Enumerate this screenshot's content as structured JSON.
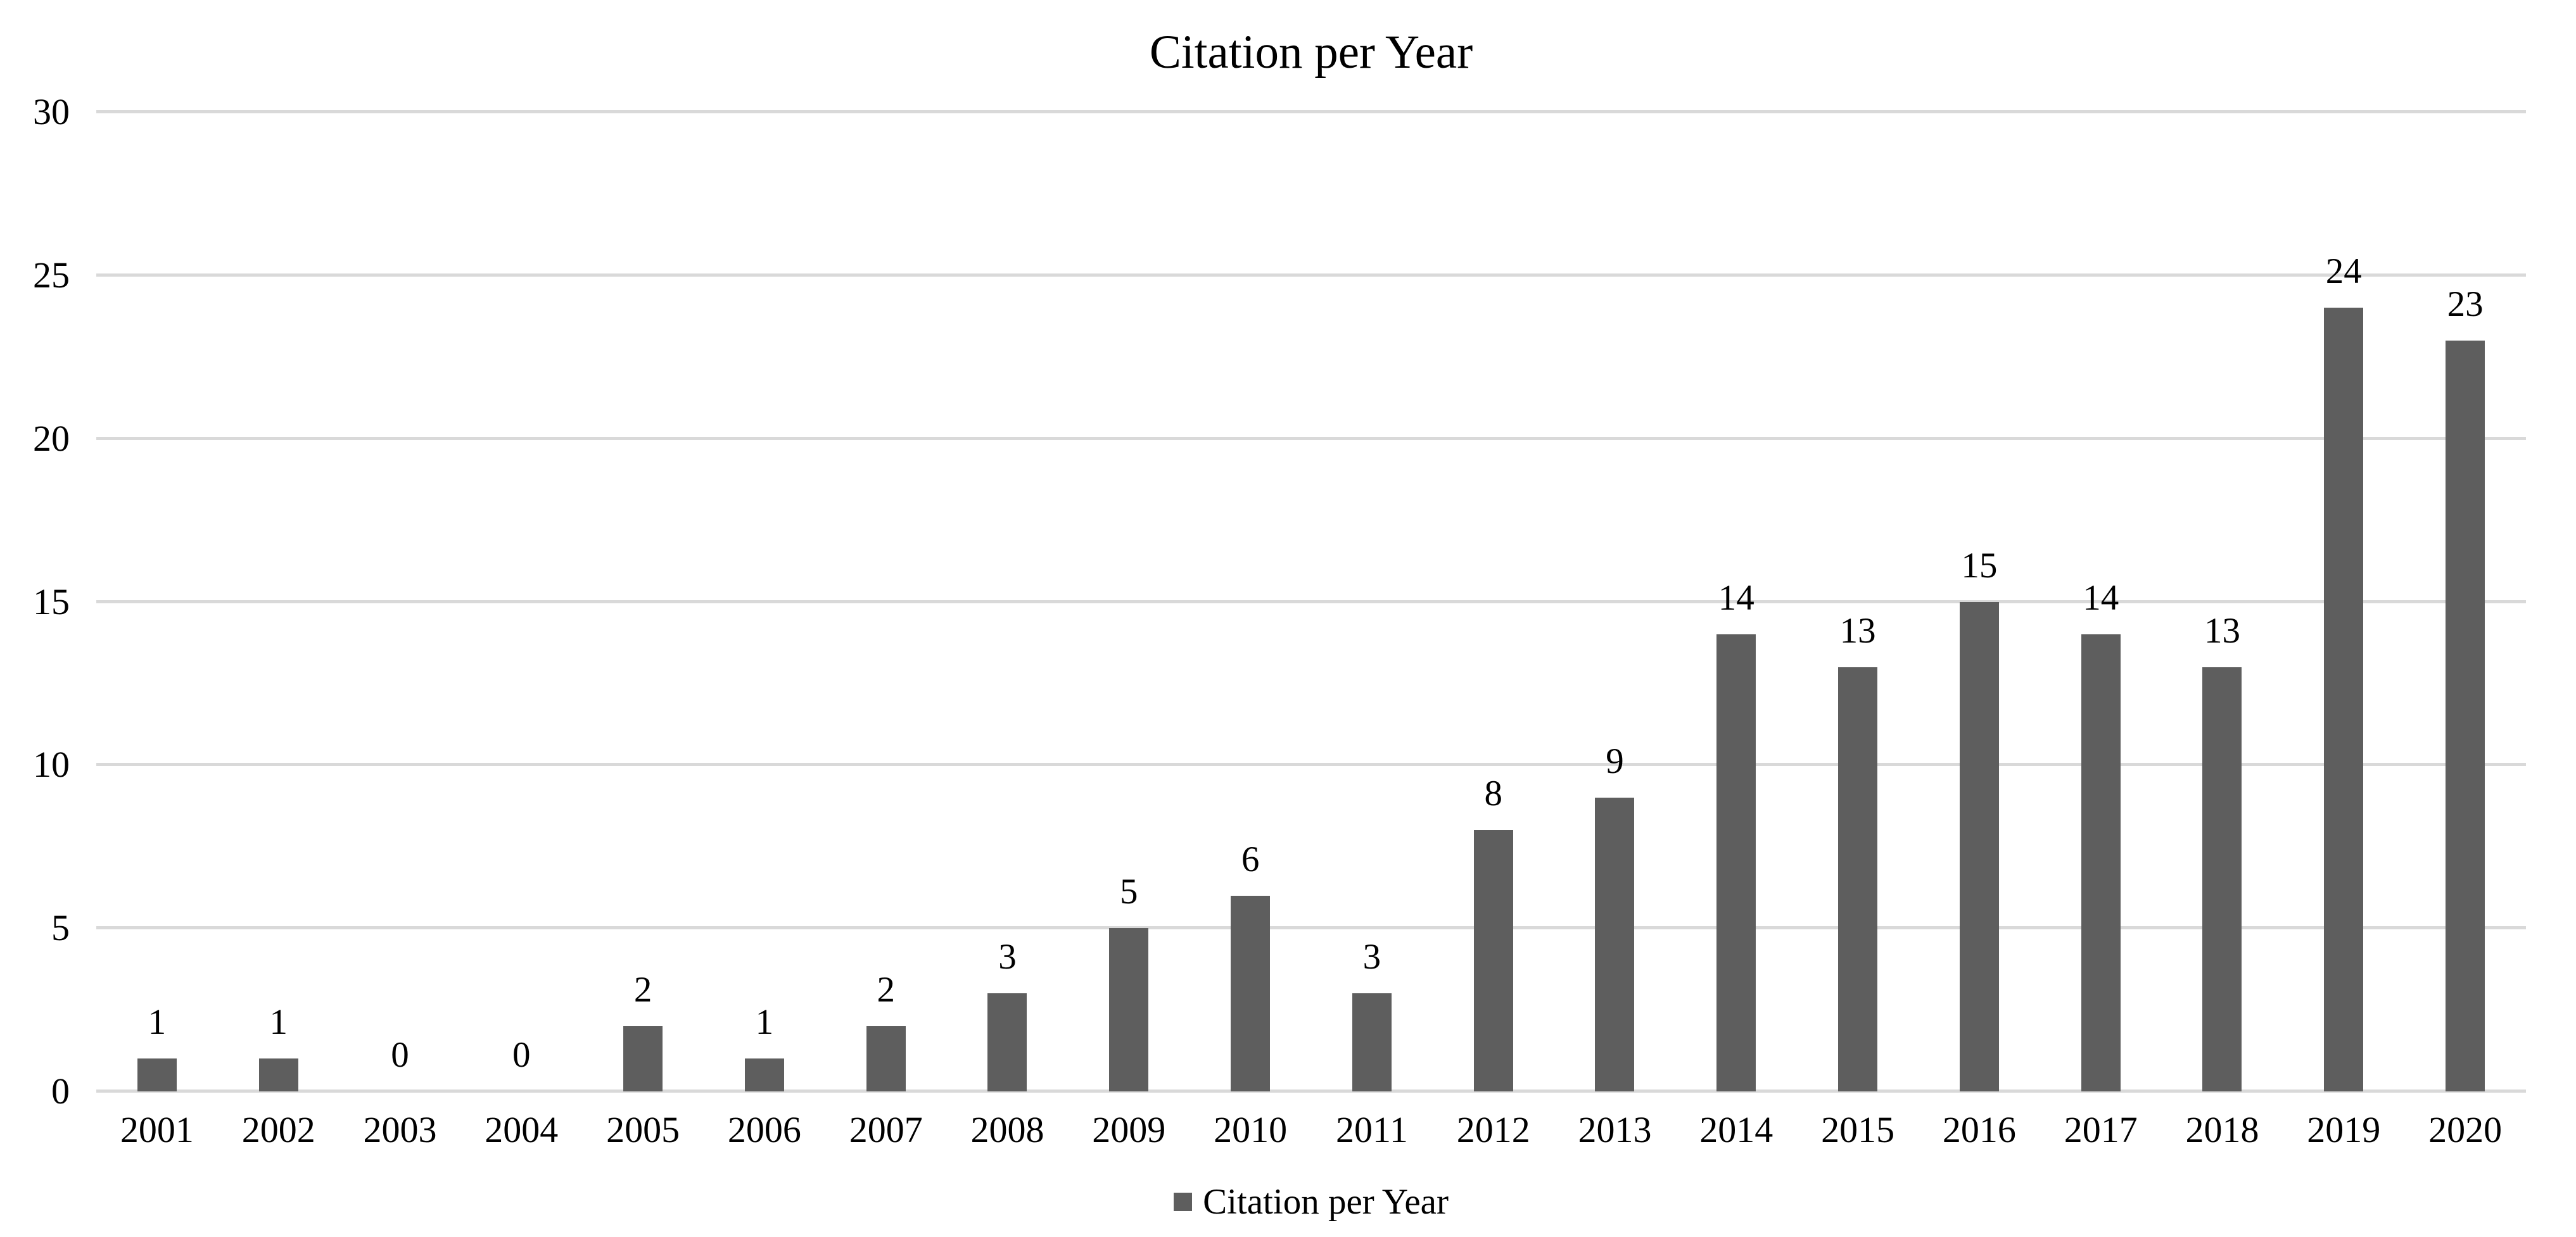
{
  "chart_data": {
    "type": "bar",
    "title": "Citation per Year",
    "categories": [
      "2001",
      "2002",
      "2003",
      "2004",
      "2005",
      "2006",
      "2007",
      "2008",
      "2009",
      "2010",
      "2011",
      "2012",
      "2013",
      "2014",
      "2015",
      "2016",
      "2017",
      "2018",
      "2019",
      "2020"
    ],
    "values": [
      1,
      1,
      0,
      0,
      2,
      1,
      2,
      3,
      5,
      6,
      3,
      8,
      9,
      14,
      13,
      15,
      14,
      13,
      24,
      23
    ],
    "series_name": "Citation per Year",
    "xlabel": "",
    "ylabel": "",
    "ylim": [
      0,
      30
    ],
    "yticks": [
      0,
      5,
      10,
      15,
      20,
      25,
      30
    ],
    "grid": true,
    "show_value_labels": true,
    "legend": {
      "label": "Citation per Year",
      "position": "bottom"
    },
    "colors": {
      "bar": "#5E5E5E",
      "gridline": "#D9D9D9",
      "text": "#000000",
      "background": "#FFFFFF"
    }
  }
}
